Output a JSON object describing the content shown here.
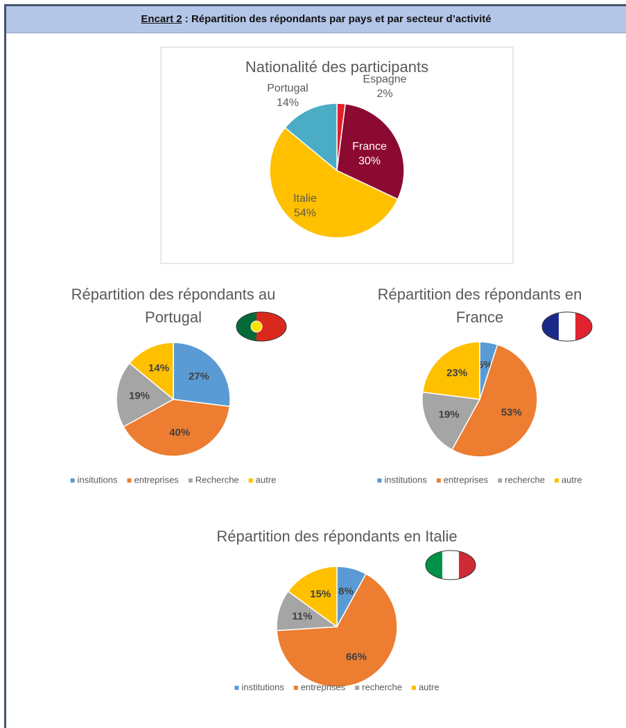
{
  "header": {
    "label": "Encart 2",
    "title": ": Répartition des répondants par pays et par secteur d’activité"
  },
  "chart_data": [
    {
      "type": "pie",
      "title": "Nationalité des participants",
      "categories": [
        "Espagne",
        "France",
        "Italie",
        "Portugal"
      ],
      "values": [
        2,
        30,
        54,
        14
      ],
      "value_labels": [
        "2%",
        "30%",
        "54%",
        "14%"
      ],
      "colors": [
        "#e3202a",
        "#8c0a32",
        "#ffc000",
        "#4bacc6"
      ],
      "legend": false
    },
    {
      "type": "pie",
      "title": "Répartition des répondants au Portugal",
      "categories": [
        "insitutions",
        "entreprises",
        "Recherche",
        "autre"
      ],
      "values": [
        27,
        40,
        19,
        14
      ],
      "value_labels": [
        "27%",
        "40%",
        "19%",
        "14%"
      ],
      "colors": [
        "#5b9bd5",
        "#ed7d31",
        "#a5a5a5",
        "#ffc000"
      ],
      "legend": true
    },
    {
      "type": "pie",
      "title": "Répartition des répondants en France",
      "categories": [
        "institutions",
        "entreprises",
        "recherche",
        "autre"
      ],
      "values": [
        5,
        53,
        19,
        23
      ],
      "value_labels": [
        "5%",
        "53%",
        "19%",
        "23%"
      ],
      "colors": [
        "#5b9bd5",
        "#ed7d31",
        "#a5a5a5",
        "#ffc000"
      ],
      "legend": true
    },
    {
      "type": "pie",
      "title": "Répartition des répondants en Italie",
      "categories": [
        "institutions",
        "entreprises",
        "recherche",
        "autre"
      ],
      "values": [
        8,
        66,
        11,
        15
      ],
      "value_labels": [
        "8%",
        "66%",
        "11%",
        "15%"
      ],
      "colors": [
        "#5b9bd5",
        "#ed7d31",
        "#a5a5a5",
        "#ffc000"
      ],
      "legend": true
    }
  ]
}
